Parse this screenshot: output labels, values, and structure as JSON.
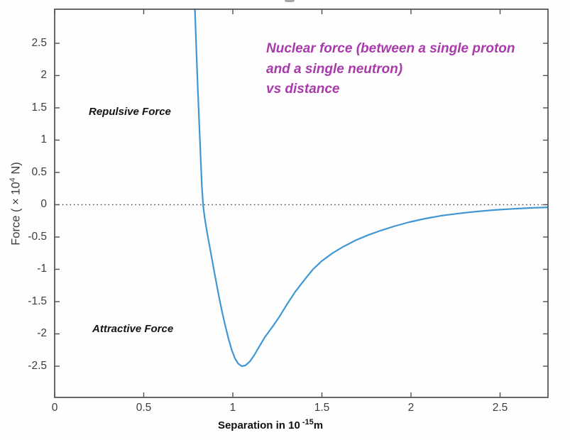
{
  "chart_data": {
    "type": "line",
    "note": {
      "lines": [
        "Nuclear force (between a single proton",
        "and a single neutron)",
        "vs distance"
      ],
      "color": "#a93aab"
    },
    "region_labels": {
      "upper": "Repulsive Force",
      "lower": "Attractive Force"
    },
    "xlabel": {
      "prefix": "Separation in 10",
      "exponent": "-15",
      "suffix": "m"
    },
    "ylabel": {
      "prefix": "Force ( × 10",
      "exponent": "4",
      "suffix": " N)"
    },
    "x_tick_values": [
      0,
      0.5,
      1,
      1.5,
      2,
      2.5
    ],
    "x_tick_labels": [
      "0",
      "0.5",
      "1",
      "1.5",
      "2",
      "2.5"
    ],
    "y_tick_values": [
      2.5,
      2,
      1.5,
      1,
      0.5,
      0,
      -0.5,
      -1,
      -1.5,
      -2,
      -2.5
    ],
    "y_tick_labels": [
      "2.5",
      "2",
      "1.5",
      "1",
      "0.5",
      "0",
      "-0.5",
      "-1",
      "-1.5",
      "-2",
      "-2.5"
    ],
    "xlim": [
      0,
      2.769
    ],
    "ylim": [
      -2.984,
      3.027
    ],
    "grid": "off",
    "zero_line": {
      "y": 0,
      "style": "dotted",
      "color": "#2e2e2e"
    },
    "frame_color": "#4f4f4f",
    "series": [
      {
        "name": "nuclear force between proton and neutron",
        "color": "#3f97d4",
        "zero_crossing_x": 0.83,
        "minimum": {
          "x": 1.05,
          "y": -2.5
        },
        "points": [
          [
            0.787,
            3.05
          ],
          [
            0.792,
            2.65
          ],
          [
            0.798,
            2.2
          ],
          [
            0.805,
            1.7
          ],
          [
            0.812,
            1.22
          ],
          [
            0.819,
            0.75
          ],
          [
            0.826,
            0.3
          ],
          [
            0.833,
            0.0
          ],
          [
            0.842,
            -0.2
          ],
          [
            0.856,
            -0.44
          ],
          [
            0.872,
            -0.68
          ],
          [
            0.888,
            -0.92
          ],
          [
            0.905,
            -1.17
          ],
          [
            0.922,
            -1.42
          ],
          [
            0.94,
            -1.66
          ],
          [
            0.958,
            -1.88
          ],
          [
            0.976,
            -2.08
          ],
          [
            0.994,
            -2.25
          ],
          [
            1.012,
            -2.38
          ],
          [
            1.03,
            -2.46
          ],
          [
            1.05,
            -2.5
          ],
          [
            1.07,
            -2.49
          ],
          [
            1.095,
            -2.43
          ],
          [
            1.12,
            -2.33
          ],
          [
            1.15,
            -2.19
          ],
          [
            1.18,
            -2.05
          ],
          [
            1.22,
            -1.9
          ],
          [
            1.26,
            -1.74
          ],
          [
            1.3,
            -1.56
          ],
          [
            1.35,
            -1.35
          ],
          [
            1.4,
            -1.17
          ],
          [
            1.45,
            -1.0
          ],
          [
            1.5,
            -0.87
          ],
          [
            1.56,
            -0.75
          ],
          [
            1.62,
            -0.65
          ],
          [
            1.69,
            -0.55
          ],
          [
            1.76,
            -0.47
          ],
          [
            1.83,
            -0.4
          ],
          [
            1.91,
            -0.33
          ],
          [
            1.99,
            -0.27
          ],
          [
            2.08,
            -0.215
          ],
          [
            2.17,
            -0.17
          ],
          [
            2.27,
            -0.135
          ],
          [
            2.37,
            -0.105
          ],
          [
            2.47,
            -0.082
          ],
          [
            2.57,
            -0.064
          ],
          [
            2.67,
            -0.05
          ],
          [
            2.77,
            -0.04
          ]
        ]
      }
    ]
  }
}
